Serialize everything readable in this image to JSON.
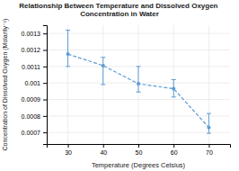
{
  "chart_data": {
    "type": "line",
    "title": "Relationship Between Temperature and Dissolved Oxygen Concentration in Water",
    "xlabel": "Temperature (Degrees Celsius)",
    "ylabel": "Concentration of Dissolved Oxygen (Molarity⁻¹)",
    "x": [
      30,
      40,
      50,
      60,
      70
    ],
    "values": [
      0.001175,
      0.001105,
      0.000995,
      0.000965,
      0.00073
    ],
    "yerr_upper": [
      0.000145,
      5e-05,
      0.000105,
      5.5e-05,
      8.5e-05
    ],
    "yerr_lower": [
      7.5e-05,
      0.000115,
      5e-05,
      5e-05,
      3.5e-05
    ],
    "color": "#5b9bd5",
    "marker": "circle",
    "line_style": "dashed",
    "xlim": [
      24,
      76
    ],
    "xticks": [
      30,
      40,
      50,
      60,
      70
    ],
    "ylim": [
      0.00063,
      0.00135
    ],
    "yticks": [
      0.0007,
      0.0008,
      0.0009,
      0.001,
      0.0011,
      0.0012,
      0.0013
    ],
    "grid": true
  }
}
